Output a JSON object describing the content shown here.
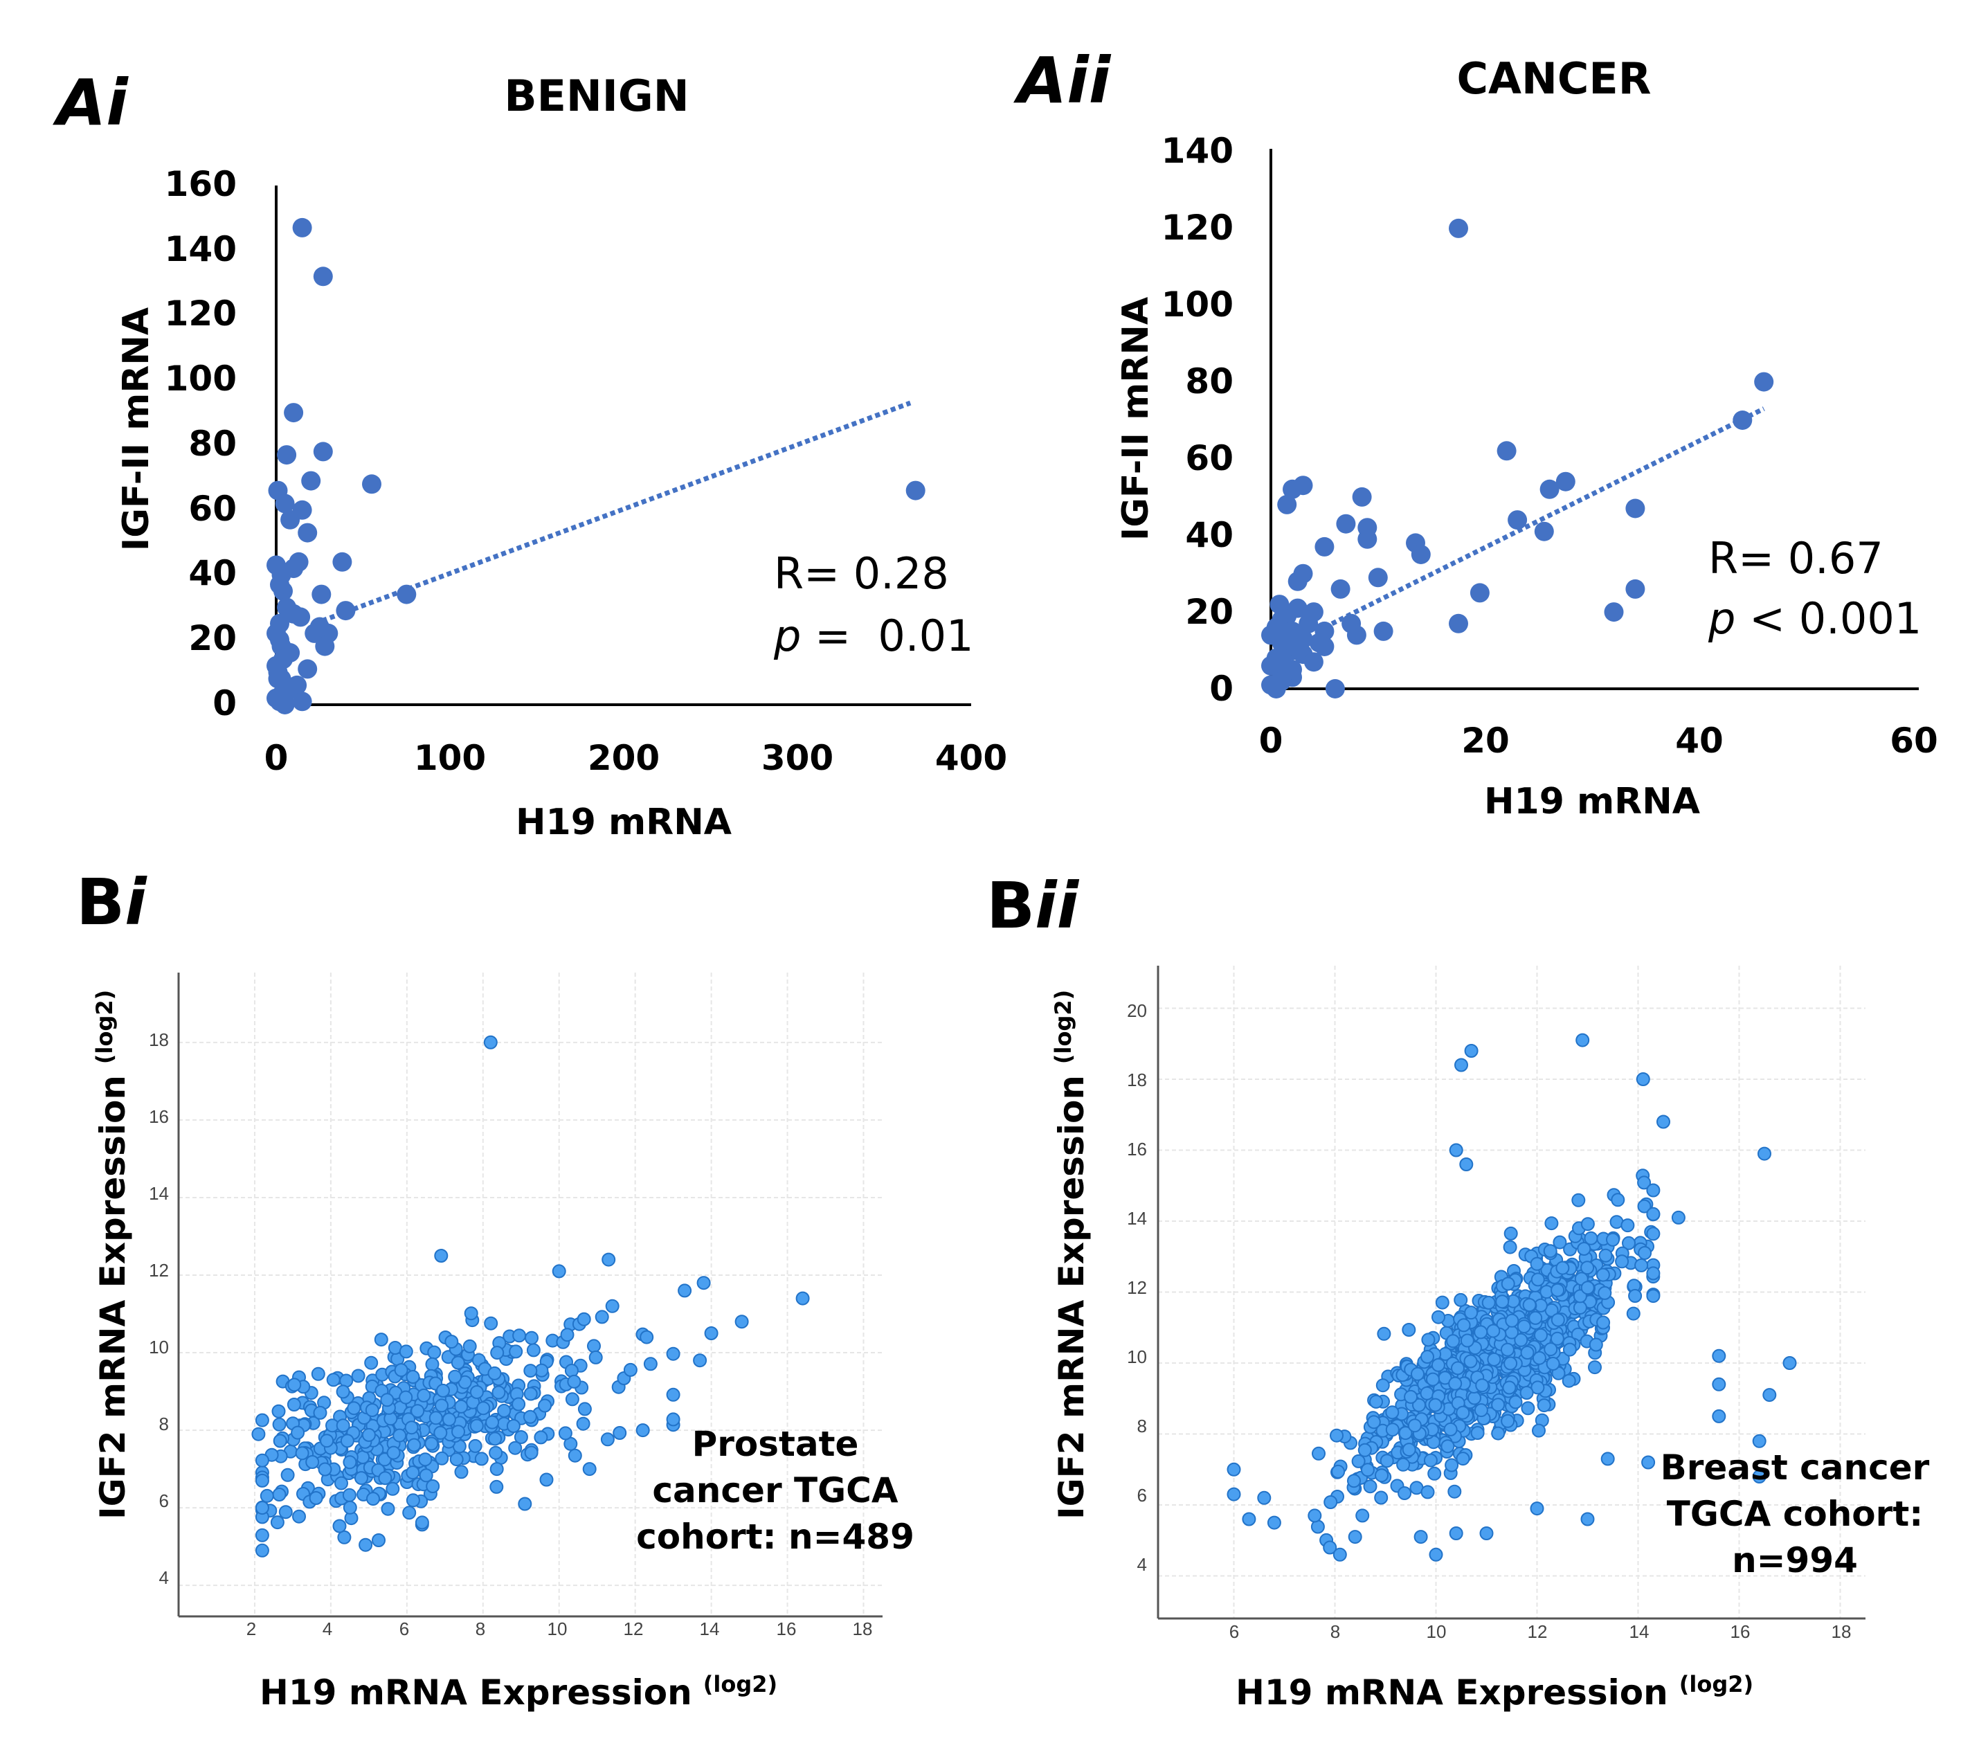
{
  "chart_data": [
    {
      "id": "Ai",
      "panel_label": "Ai",
      "type": "scatter",
      "title": "BENIGN",
      "xlabel": "H19 mRNA",
      "ylabel": "IGF-II mRNA",
      "xlim": [
        0,
        400
      ],
      "ylim": [
        0,
        160
      ],
      "xticks": [
        0,
        100,
        200,
        300,
        400
      ],
      "yticks": [
        0,
        20,
        40,
        60,
        80,
        100,
        120,
        140,
        160
      ],
      "stats": {
        "r_text": "R= 0.28",
        "p_sym": "p",
        "p_rest": " =  0.01"
      },
      "trendline": {
        "x": [
          22,
          365
        ],
        "y": [
          25,
          93
        ]
      },
      "points": {
        "x": [
          15,
          27,
          10,
          6,
          20,
          27,
          15,
          1,
          5,
          8,
          18,
          0,
          10,
          3,
          13,
          4,
          2,
          55,
          38,
          75,
          6,
          26,
          14,
          22,
          30,
          40,
          28,
          25,
          18,
          2,
          3,
          8,
          0,
          1,
          5,
          12,
          3,
          15,
          0,
          2,
          4,
          1,
          3,
          6,
          0,
          10,
          2,
          5,
          368
        ],
        "y": [
          147,
          132,
          90,
          77,
          69,
          78,
          60,
          66,
          62,
          57,
          53,
          43,
          42,
          40,
          44,
          35,
          37,
          68,
          44,
          34,
          30,
          34,
          27,
          22,
          22,
          29,
          18,
          24,
          11,
          25,
          18,
          16,
          12,
          8,
          5,
          6,
          3,
          1,
          22,
          20,
          14,
          10,
          8,
          4,
          2,
          28,
          1,
          0,
          66
        ]
      }
    },
    {
      "id": "Aii",
      "panel_label": "Aii",
      "type": "scatter",
      "title": "CANCER",
      "xlabel": "H19 mRNA",
      "ylabel": "IGF-II mRNA",
      "xlim": [
        0,
        60
      ],
      "ylim": [
        0,
        140
      ],
      "xticks": [
        0,
        20,
        40,
        60
      ],
      "yticks": [
        0,
        20,
        40,
        60,
        80,
        100,
        120,
        140
      ],
      "stats": {
        "r_text": "R= 0.67",
        "p_sym": "p",
        "p_rest": " < 0.001"
      },
      "trendline": {
        "x": [
          5,
          46
        ],
        "y": [
          16,
          73
        ]
      },
      "points": {
        "x": [
          17.5,
          46,
          44,
          22,
          27.5,
          26,
          34,
          25.5,
          23,
          13.5,
          14,
          19.5,
          34,
          32,
          10.5,
          17.5,
          8.5,
          9,
          7,
          9,
          10,
          3,
          2,
          1.5,
          5,
          3,
          2.5,
          6.5,
          8,
          4,
          5,
          7.5,
          4.5,
          1,
          0.5,
          0,
          1,
          2,
          0.5,
          3,
          1.5,
          0,
          1,
          2,
          3,
          4,
          5,
          2,
          1,
          0.5,
          6,
          1.5,
          2.5,
          3.5,
          0,
          1,
          2,
          0.8
        ],
        "y": [
          120,
          80,
          70,
          62,
          54,
          52,
          47,
          41,
          44,
          38,
          35,
          25,
          26,
          20,
          15,
          17,
          50,
          42,
          43,
          39,
          29,
          53,
          52,
          48,
          37,
          30,
          28,
          26,
          14,
          20,
          15,
          17,
          12,
          18,
          16,
          14,
          12,
          10,
          8,
          13,
          11,
          6,
          4,
          3,
          9,
          7,
          11,
          5,
          2,
          0,
          0,
          19,
          21,
          17,
          1,
          8,
          15,
          22
        ]
      }
    },
    {
      "id": "Bi",
      "panel_label_main": "B",
      "panel_label_sub": "i",
      "type": "scatter",
      "xlabel": "H19 mRNA Expression",
      "xlabel_sup": "(log2)",
      "ylabel": "IGF2 mRNA Expression",
      "ylabel_sup": "(log2)",
      "xlim": [
        0,
        18.5
      ],
      "ylim": [
        3.2,
        19.8
      ],
      "xticks": [
        2,
        4,
        6,
        8,
        10,
        12,
        14,
        16,
        18
      ],
      "yticks": [
        4,
        6,
        8,
        10,
        12,
        14,
        16,
        18
      ],
      "annotation": [
        "Prostate",
        "cancer TGCA",
        "cohort: n=489"
      ],
      "cloud": {
        "n": 480,
        "x_mean": 6.5,
        "x_sd": 2.2,
        "x_min": 2.2,
        "x_max": 13,
        "y_intercept": 6.8,
        "y_slope": 0.22,
        "y_sd": 1.0,
        "seed": 7
      },
      "points": {
        "x": [
          8.2,
          6.9,
          10,
          11.3,
          13.3,
          14.8,
          16.4,
          13.8,
          14,
          12.3,
          11.4,
          10.8,
          2.1,
          2.2,
          2.2,
          9.1,
          12.2,
          13.7
        ],
        "y": [
          18,
          12.5,
          12.1,
          12.4,
          11.6,
          10.8,
          11.4,
          11.8,
          10.5,
          10.4,
          11.2,
          7,
          7.9,
          6,
          4.9,
          6.1,
          8,
          9.8
        ]
      }
    },
    {
      "id": "Bii",
      "panel_label_main": "B",
      "panel_label_sub": "ii",
      "type": "scatter",
      "xlabel": "H19 mRNA Expression",
      "xlabel_sup": "(log2)",
      "ylabel": "IGF2 mRNA Expression",
      "ylabel_sup": "(log2)",
      "xlim": [
        4.5,
        18.5
      ],
      "ylim": [
        2.8,
        21.2
      ],
      "xticks": [
        6,
        8,
        10,
        12,
        14,
        16,
        18
      ],
      "yticks": [
        4,
        6,
        8,
        10,
        12,
        14,
        16,
        18,
        20
      ],
      "annotation": [
        "Breast cancer",
        "TGCA cohort:",
        "n=994"
      ],
      "cloud": {
        "n": 950,
        "x_mean": 11.2,
        "x_sd": 1.25,
        "x_min": 7.6,
        "x_max": 14.3,
        "y_intercept": -1.5,
        "y_slope": 1.05,
        "y_sd": 1.0,
        "seed": 11
      },
      "points": {
        "x": [
          10.7,
          10.5,
          12.9,
          14.1,
          14.5,
          16.5,
          10.4,
          10.6,
          13.6,
          14.3,
          14.8,
          15.6,
          15.6,
          15.6,
          16.4,
          17,
          16.6,
          16.4,
          6,
          6,
          6.3,
          6.6,
          6.8,
          7.6,
          7.9,
          8.1,
          8.4,
          9.7,
          10,
          10.4,
          11,
          12,
          13,
          13.4,
          14.2
        ],
        "y": [
          18.8,
          18.4,
          19.1,
          18,
          16.8,
          15.9,
          16,
          15.6,
          14.6,
          14.2,
          14.1,
          10.2,
          9.4,
          8.5,
          7.8,
          10,
          9.1,
          6.8,
          7,
          6.3,
          5.6,
          6.2,
          5.5,
          5.7,
          4.8,
          4.6,
          5.1,
          5.1,
          4.6,
          5.2,
          5.2,
          5.9,
          5.6,
          7.3,
          7.2
        ]
      }
    }
  ]
}
